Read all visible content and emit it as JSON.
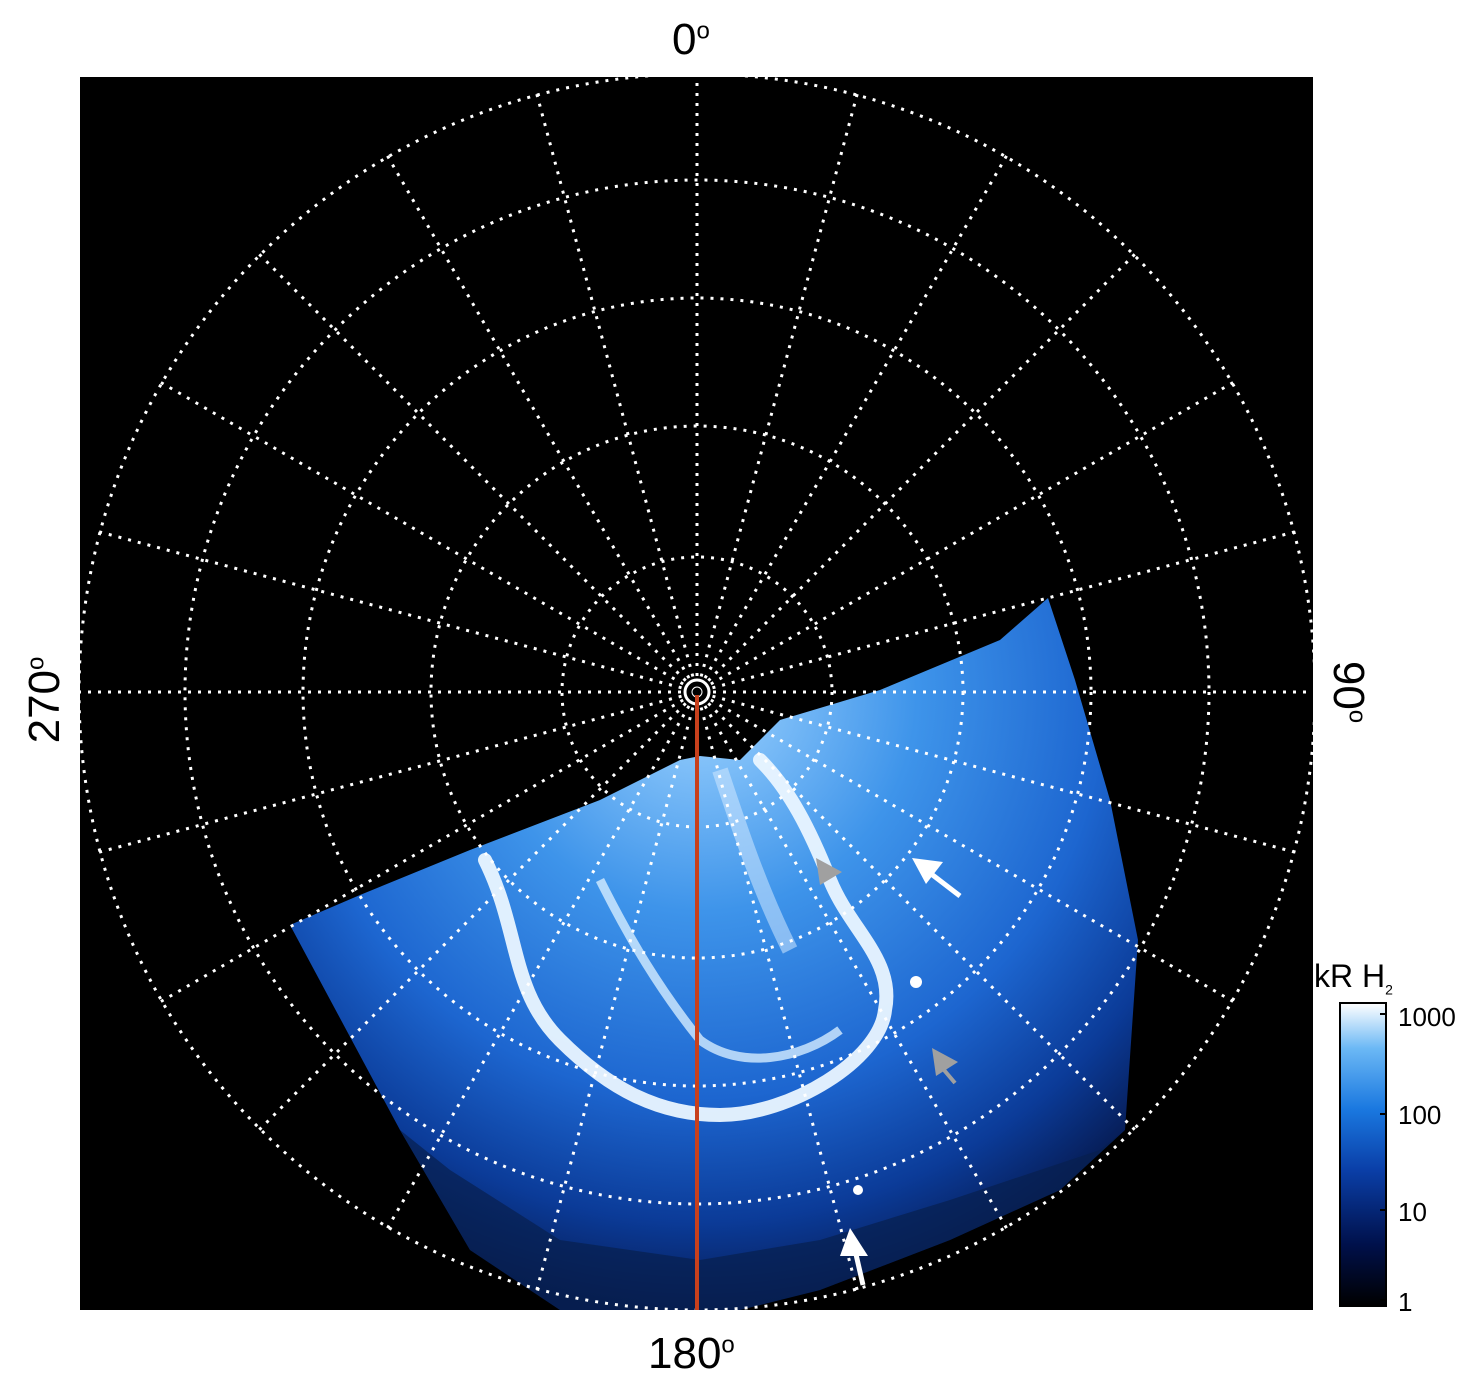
{
  "labels": {
    "top": "0",
    "right": "90",
    "bottom": "180",
    "left": "270",
    "degree_symbol": "o"
  },
  "colorbar": {
    "title_main": "kR H",
    "title_sub": "2",
    "ticks": [
      "1000",
      "100",
      "10",
      "1"
    ],
    "colors": [
      "#000000",
      "#00104a",
      "#0a3fa8",
      "#1a78e0",
      "#6bb8f5",
      "#ffffff"
    ]
  },
  "colors": {
    "background": "#000000",
    "grid": "#ffffff",
    "aurora_blue": "#1f6fd6",
    "meridian": "#c8401c",
    "arrow_white": "#ffffff",
    "arrow_gray": "#a0a0a0"
  },
  "icons": [
    "white-arrow-icon",
    "gray-arrowhead-icon"
  ]
}
